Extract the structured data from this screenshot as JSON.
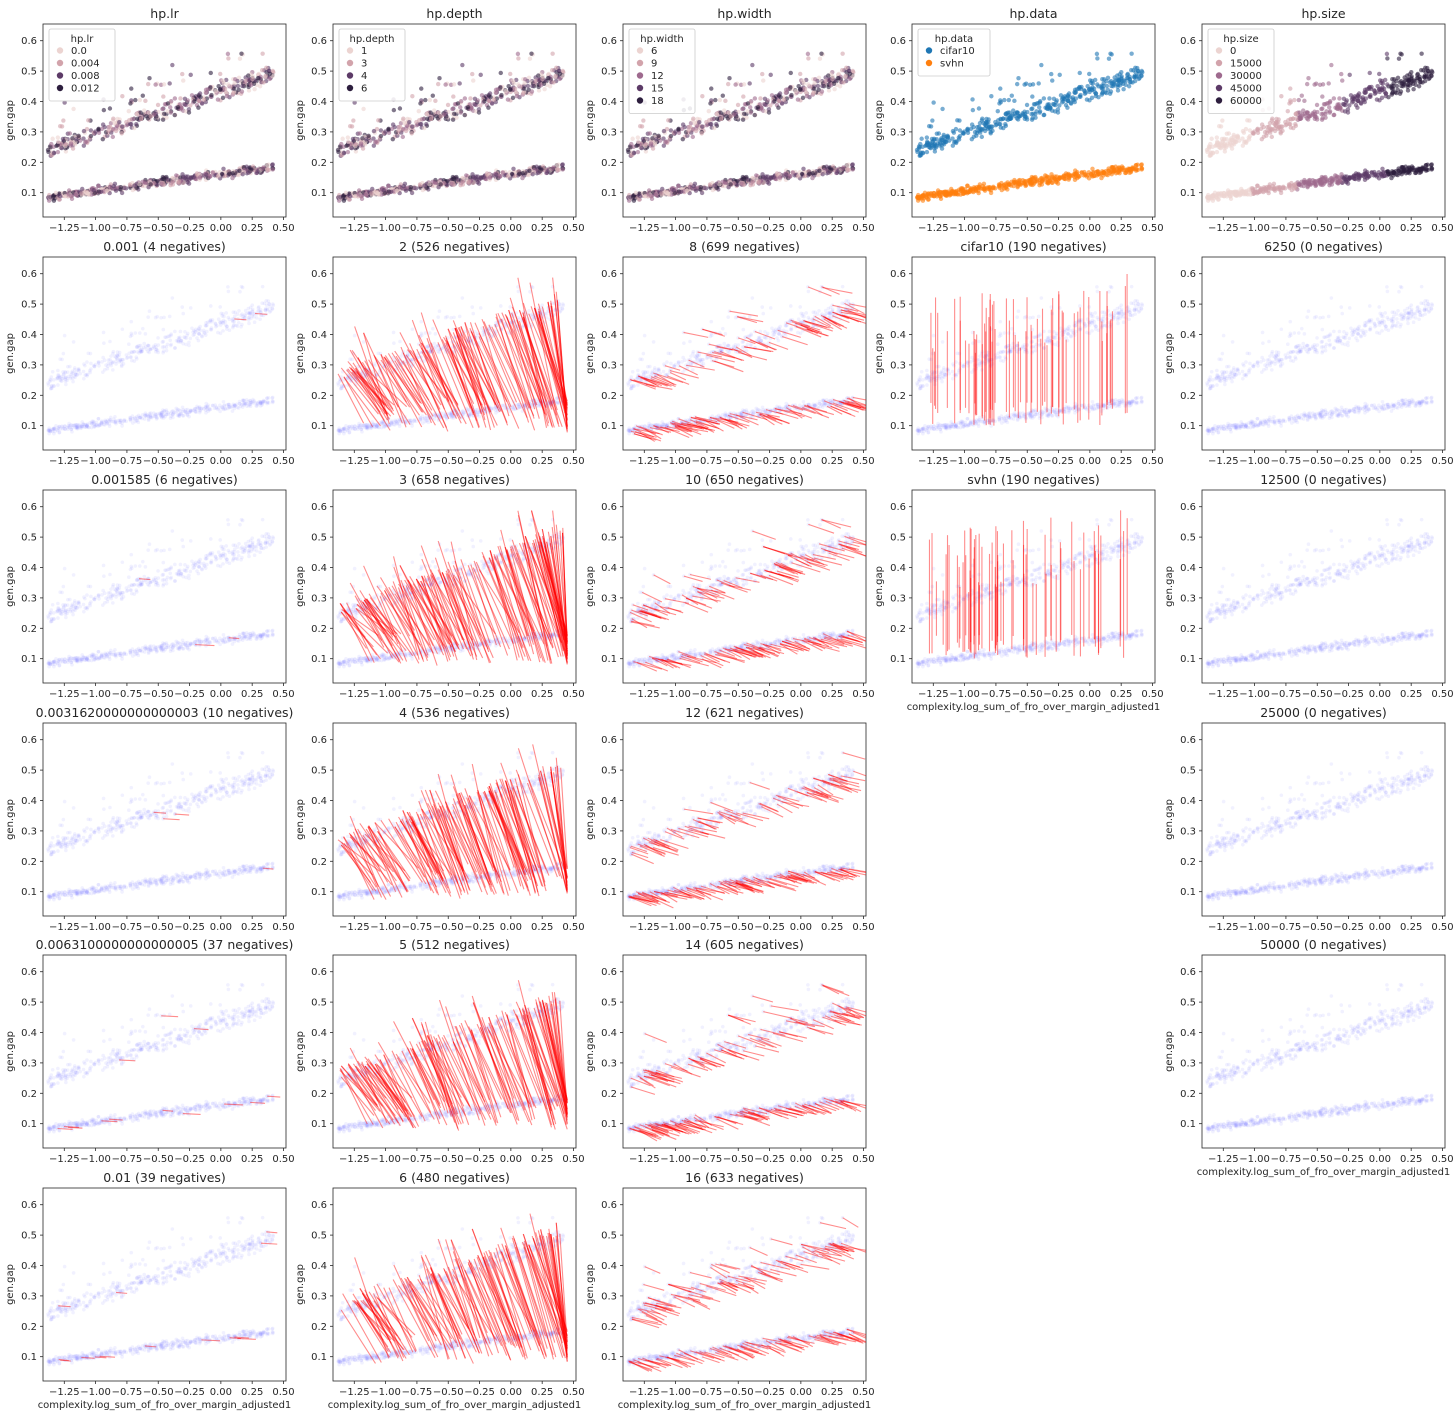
{
  "figure": {
    "xlabel": "complexity.log_sum_of_fro_over_margin_adjusted1",
    "ylabel": "gen.gap",
    "xticks": [
      "−1.25",
      "−1.00",
      "−0.75",
      "−0.50",
      "−0.25",
      "0.00",
      "0.25",
      "0.50"
    ],
    "xtick_values": [
      -1.25,
      -1.0,
      -0.75,
      -0.5,
      -0.25,
      0.0,
      0.25,
      0.5
    ],
    "yticks": [
      "0.1",
      "0.2",
      "0.3",
      "0.4",
      "0.5",
      "0.6"
    ],
    "ytick_values": [
      0.1,
      0.2,
      0.3,
      0.4,
      0.5,
      0.6
    ],
    "xlim": [
      -1.42,
      0.52
    ],
    "ylim": [
      0.02,
      0.655
    ],
    "grid": false,
    "colors": {
      "hue_light": "#ecd4d1",
      "hue_mid1": "#d2a3ab",
      "hue_mid2": "#9e6a8e",
      "hue_dark": "#2d1e3e",
      "cifar10": "#1f77b4",
      "svhn": "#ff7f0e",
      "negative_line": "#ff0000",
      "background_points": "#8888ff"
    }
  },
  "chart_data": [
    {
      "type": "scatter",
      "col": 0,
      "row": 0,
      "title": "hp.lr",
      "kind": "hue",
      "legend": {
        "title": "hp.lr",
        "location": "upper-left",
        "entries": [
          "0.0",
          "0.004",
          "0.008",
          "0.012"
        ]
      }
    },
    {
      "type": "scatter",
      "col": 1,
      "row": 0,
      "title": "hp.depth",
      "kind": "hue",
      "legend": {
        "title": "hp.depth",
        "location": "upper-left",
        "entries": [
          "1",
          "3",
          "4",
          "6"
        ]
      }
    },
    {
      "type": "scatter",
      "col": 2,
      "row": 0,
      "title": "hp.width",
      "kind": "hue",
      "legend": {
        "title": "hp.width",
        "location": "upper-left",
        "entries": [
          "6",
          "9",
          "12",
          "15",
          "18"
        ]
      }
    },
    {
      "type": "scatter",
      "col": 3,
      "row": 0,
      "title": "hp.data",
      "kind": "data",
      "legend": {
        "title": "hp.data",
        "location": "upper-left",
        "entries": [
          "cifar10",
          "svhn"
        ]
      }
    },
    {
      "type": "scatter",
      "col": 4,
      "row": 0,
      "title": "hp.size",
      "kind": "hue",
      "legend": {
        "title": "hp.size",
        "location": "upper-left",
        "entries": [
          "0",
          "15000",
          "30000",
          "45000",
          "60000"
        ]
      }
    },
    {
      "type": "line",
      "col": 0,
      "row": 1,
      "title": "0.001 (4 negatives)",
      "negatives": 4,
      "mode": "lr"
    },
    {
      "type": "line",
      "col": 0,
      "row": 2,
      "title": "0.001585 (6 negatives)",
      "negatives": 6,
      "mode": "lr"
    },
    {
      "type": "line",
      "col": 0,
      "row": 3,
      "title": "0.0031620000000000003 (10 negatives)",
      "negatives": 10,
      "mode": "lr"
    },
    {
      "type": "line",
      "col": 0,
      "row": 4,
      "title": "0.0063100000000000005 (37 negatives)",
      "negatives": 37,
      "mode": "lr"
    },
    {
      "type": "line",
      "col": 0,
      "row": 5,
      "title": "0.01 (39 negatives)",
      "negatives": 39,
      "mode": "lr",
      "xlabel": true
    },
    {
      "type": "line",
      "col": 1,
      "row": 1,
      "title": "2 (526 negatives)",
      "negatives": 526,
      "mode": "depth"
    },
    {
      "type": "line",
      "col": 1,
      "row": 2,
      "title": "3 (658 negatives)",
      "negatives": 658,
      "mode": "depth"
    },
    {
      "type": "line",
      "col": 1,
      "row": 3,
      "title": "4 (536 negatives)",
      "negatives": 536,
      "mode": "depth"
    },
    {
      "type": "line",
      "col": 1,
      "row": 4,
      "title": "5 (512 negatives)",
      "negatives": 512,
      "mode": "depth"
    },
    {
      "type": "line",
      "col": 1,
      "row": 5,
      "title": "6 (480 negatives)",
      "negatives": 480,
      "mode": "depth",
      "xlabel": true
    },
    {
      "type": "line",
      "col": 2,
      "row": 1,
      "title": "8 (699 negatives)",
      "negatives": 699,
      "mode": "width"
    },
    {
      "type": "line",
      "col": 2,
      "row": 2,
      "title": "10 (650 negatives)",
      "negatives": 650,
      "mode": "width"
    },
    {
      "type": "line",
      "col": 2,
      "row": 3,
      "title": "12 (621 negatives)",
      "negatives": 621,
      "mode": "width"
    },
    {
      "type": "line",
      "col": 2,
      "row": 4,
      "title": "14 (605 negatives)",
      "negatives": 605,
      "mode": "width"
    },
    {
      "type": "line",
      "col": 2,
      "row": 5,
      "title": "16 (633 negatives)",
      "negatives": 633,
      "mode": "width",
      "xlabel": true
    },
    {
      "type": "line",
      "col": 3,
      "row": 1,
      "title": "cifar10 (190 negatives)",
      "negatives": 190,
      "mode": "data"
    },
    {
      "type": "line",
      "col": 3,
      "row": 2,
      "title": "svhn (190 negatives)",
      "negatives": 190,
      "mode": "data",
      "xlabel": true
    },
    {
      "type": "line",
      "col": 4,
      "row": 1,
      "title": "6250 (0 negatives)",
      "negatives": 0,
      "mode": "size"
    },
    {
      "type": "line",
      "col": 4,
      "row": 2,
      "title": "12500 (0 negatives)",
      "negatives": 0,
      "mode": "size"
    },
    {
      "type": "line",
      "col": 4,
      "row": 3,
      "title": "25000 (0 negatives)",
      "negatives": 0,
      "mode": "size"
    },
    {
      "type": "line",
      "col": 4,
      "row": 4,
      "title": "50000 (0 negatives)",
      "negatives": 0,
      "mode": "size",
      "xlabel": true
    }
  ]
}
